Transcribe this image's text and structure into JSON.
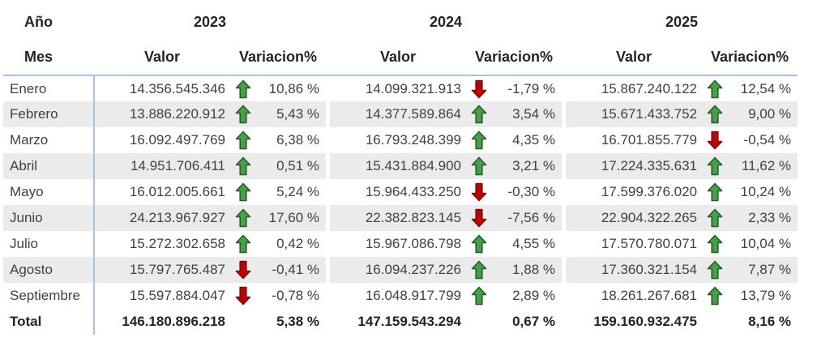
{
  "chart_data": {
    "type": "table",
    "corner": {
      "top": "Año",
      "bottom": "Mes"
    },
    "years": [
      "2023",
      "2024",
      "2025"
    ],
    "column_headers": {
      "value": "Valor",
      "variation": "Variacion%"
    },
    "rows": [
      {
        "month": "Enero",
        "cells": [
          {
            "valor": "14.356.545.346",
            "dir": "up",
            "pct": "10,86 %"
          },
          {
            "valor": "14.099.321.913",
            "dir": "down",
            "pct": "-1,79 %"
          },
          {
            "valor": "15.867.240.122",
            "dir": "up",
            "pct": "12,54 %"
          }
        ]
      },
      {
        "month": "Febrero",
        "cells": [
          {
            "valor": "13.886.220.912",
            "dir": "up",
            "pct": "5,43 %"
          },
          {
            "valor": "14.377.589.864",
            "dir": "up",
            "pct": "3,54 %"
          },
          {
            "valor": "15.671.433.752",
            "dir": "up",
            "pct": "9,00 %"
          }
        ]
      },
      {
        "month": "Marzo",
        "cells": [
          {
            "valor": "16.092.497.769",
            "dir": "up",
            "pct": "6,38 %"
          },
          {
            "valor": "16.793.248.399",
            "dir": "up",
            "pct": "4,35 %"
          },
          {
            "valor": "16.701.855.779",
            "dir": "down",
            "pct": "-0,54 %"
          }
        ]
      },
      {
        "month": "Abril",
        "cells": [
          {
            "valor": "14.951.706.411",
            "dir": "up",
            "pct": "0,51 %"
          },
          {
            "valor": "15.431.884.900",
            "dir": "up",
            "pct": "3,21 %"
          },
          {
            "valor": "17.224.335.631",
            "dir": "up",
            "pct": "11,62 %"
          }
        ]
      },
      {
        "month": "Mayo",
        "cells": [
          {
            "valor": "16.012.005.661",
            "dir": "up",
            "pct": "5,24 %"
          },
          {
            "valor": "15.964.433.250",
            "dir": "down",
            "pct": "-0,30 %"
          },
          {
            "valor": "17.599.376.020",
            "dir": "up",
            "pct": "10,24 %"
          }
        ]
      },
      {
        "month": "Junio",
        "cells": [
          {
            "valor": "24.213.967.927",
            "dir": "up",
            "pct": "17,60 %"
          },
          {
            "valor": "22.382.823.145",
            "dir": "down",
            "pct": "-7,56 %"
          },
          {
            "valor": "22.904.322.265",
            "dir": "up",
            "pct": "2,33 %"
          }
        ]
      },
      {
        "month": "Julio",
        "cells": [
          {
            "valor": "15.272.302.658",
            "dir": "up",
            "pct": "0,42 %"
          },
          {
            "valor": "15.967.086.798",
            "dir": "up",
            "pct": "4,55 %"
          },
          {
            "valor": "17.570.780.071",
            "dir": "up",
            "pct": "10,04 %"
          }
        ]
      },
      {
        "month": "Agosto",
        "cells": [
          {
            "valor": "15.797.765.487",
            "dir": "down",
            "pct": "-0,41 %"
          },
          {
            "valor": "16.094.237.226",
            "dir": "up",
            "pct": "1,88 %"
          },
          {
            "valor": "17.360.321.154",
            "dir": "up",
            "pct": "7,87 %"
          }
        ]
      },
      {
        "month": "Septiembre",
        "cells": [
          {
            "valor": "15.597.884.047",
            "dir": "down",
            "pct": "-0,78 %"
          },
          {
            "valor": "16.048.917.799",
            "dir": "up",
            "pct": "2,89 %"
          },
          {
            "valor": "18.261.267.681",
            "dir": "up",
            "pct": "13,79 %"
          }
        ]
      }
    ],
    "total": {
      "label": "Total",
      "cells": [
        {
          "valor": "146.180.896.218",
          "pct": "5,38 %"
        },
        {
          "valor": "147.159.543.294",
          "pct": "0,67 %"
        },
        {
          "valor": "159.160.932.475",
          "pct": "8,16 %"
        }
      ]
    }
  },
  "colors": {
    "up_fill": "#46a049",
    "up_stroke": "#265c28",
    "down_fill": "#c00000",
    "down_stroke": "#7a0c0c",
    "stripe": "#ebebeb",
    "grid_blue": "#a6c4e7",
    "text": "#404040",
    "header_text": "#252423"
  }
}
